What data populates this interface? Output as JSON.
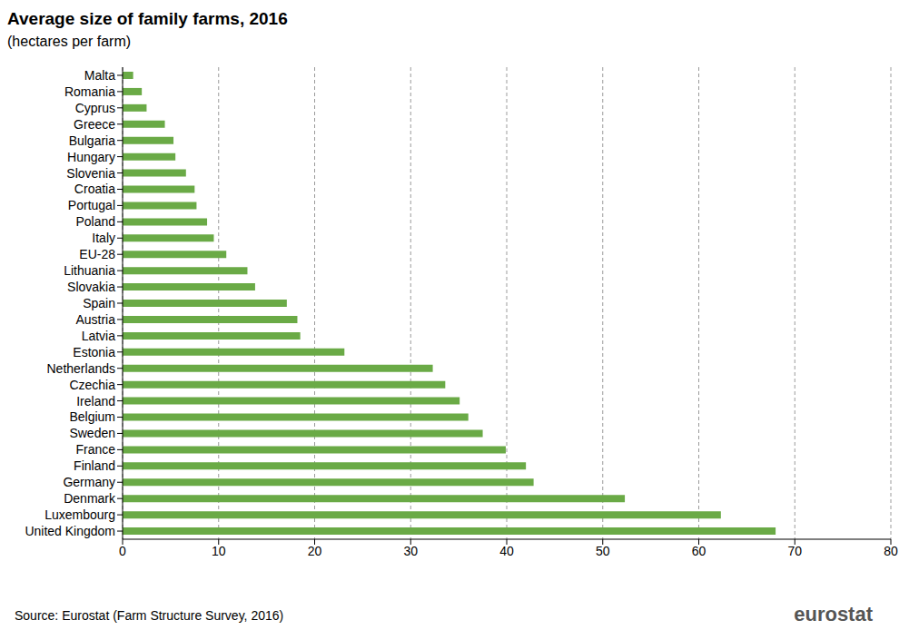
{
  "chart_data": {
    "type": "bar",
    "orientation": "horizontal",
    "title": "Average size of family farms, 2016",
    "subtitle": "(hectares per farm)",
    "source": "Source: Eurostat (Farm Structure Survey, 2016)",
    "logo_text": "eurostat",
    "categories": [
      "Malta",
      "Romania",
      "Cyprus",
      "Greece",
      "Bulgaria",
      "Hungary",
      "Slovenia",
      "Croatia",
      "Portugal",
      "Poland",
      "Italy",
      "EU-28",
      "Lithuania",
      "Slovakia",
      "Spain",
      "Austria",
      "Latvia",
      "Estonia",
      "Netherlands",
      "Czechia",
      "Ireland",
      "Belgium",
      "Sweden",
      "France",
      "Finland",
      "Germany",
      "Denmark",
      "Luxembourg",
      "United Kingdom"
    ],
    "values": [
      1.1,
      2.0,
      2.5,
      4.4,
      5.3,
      5.5,
      6.6,
      7.5,
      7.7,
      8.8,
      9.5,
      10.8,
      13.0,
      13.8,
      17.1,
      18.2,
      18.5,
      23.1,
      32.3,
      33.6,
      35.1,
      36.0,
      37.5,
      39.9,
      42.0,
      42.8,
      52.3,
      62.3,
      68.0
    ],
    "color": "#6aaa46",
    "xlim": [
      0,
      80
    ],
    "xticks": [
      0,
      10,
      20,
      30,
      40,
      50,
      60,
      70,
      80
    ],
    "grid": true
  }
}
